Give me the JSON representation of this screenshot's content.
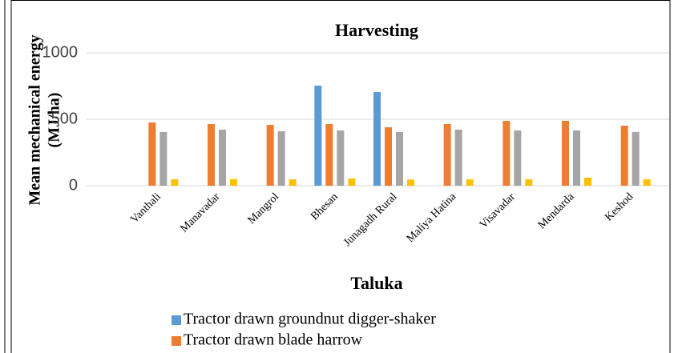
{
  "chart_data": {
    "type": "bar",
    "title": "Harvesting",
    "y_label": [
      "Mean mechanical energy",
      "(MJ/ha)"
    ],
    "x_label": "Taluka",
    "categories": [
      "Vanthali",
      "Manavadar",
      "Mangrol",
      "Bhesan",
      "Junagadh Rural",
      "Maliya Hatina",
      "Visavadar",
      "Mendarda",
      "Keshod"
    ],
    "series": [
      {
        "name": "Tractor drawn groundnut digger-shaker",
        "color": "#5b9bd5",
        "values": [
          null,
          null,
          null,
          753,
          705,
          null,
          null,
          null,
          null
        ]
      },
      {
        "name": "Tractor drawn blade harrow",
        "color": "#ed7d31",
        "values": [
          476,
          464,
          458,
          464,
          440,
          464,
          488,
          488,
          452
        ]
      },
      {
        "color": "#a5a5a5",
        "values": [
          404,
          422,
          410,
          416,
          404,
          422,
          416,
          416,
          404
        ]
      },
      {
        "color": "#ffc000",
        "values": [
          48,
          50,
          48,
          54,
          46,
          48,
          48,
          60,
          48
        ]
      }
    ],
    "ylim": [
      0,
      1000
    ],
    "yticks": [
      0,
      500,
      1000
    ],
    "grid": true
  }
}
